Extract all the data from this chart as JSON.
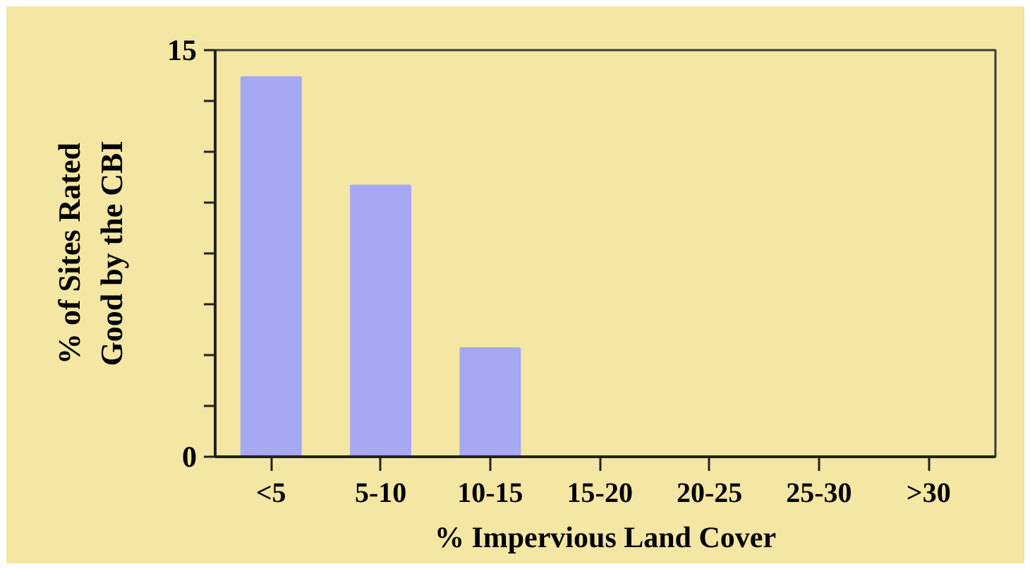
{
  "chart_data": {
    "type": "bar",
    "categories": [
      "<5",
      "5-10",
      "10-15",
      "15-20",
      "20-25",
      "25-30",
      ">30"
    ],
    "values": [
      14,
      10,
      4,
      0,
      0,
      0,
      0
    ],
    "color": "#a6a8f2",
    "xlabel": "% Impervious Land Cover",
    "ylabel": "% of Sites Rated\nGood by the CBI",
    "ylim": [
      0,
      15
    ],
    "yticks": [
      0,
      {
        "value": 1.875,
        "label": null
      },
      {
        "value": 3.75,
        "label": null
      },
      {
        "value": 5.625,
        "label": null
      },
      {
        "value": 7.5,
        "label": null
      },
      {
        "value": 9.375,
        "label": null
      },
      {
        "value": 11.25,
        "label": null
      },
      {
        "value": 13.125,
        "label": null
      },
      15
    ],
    "grid": false
  }
}
